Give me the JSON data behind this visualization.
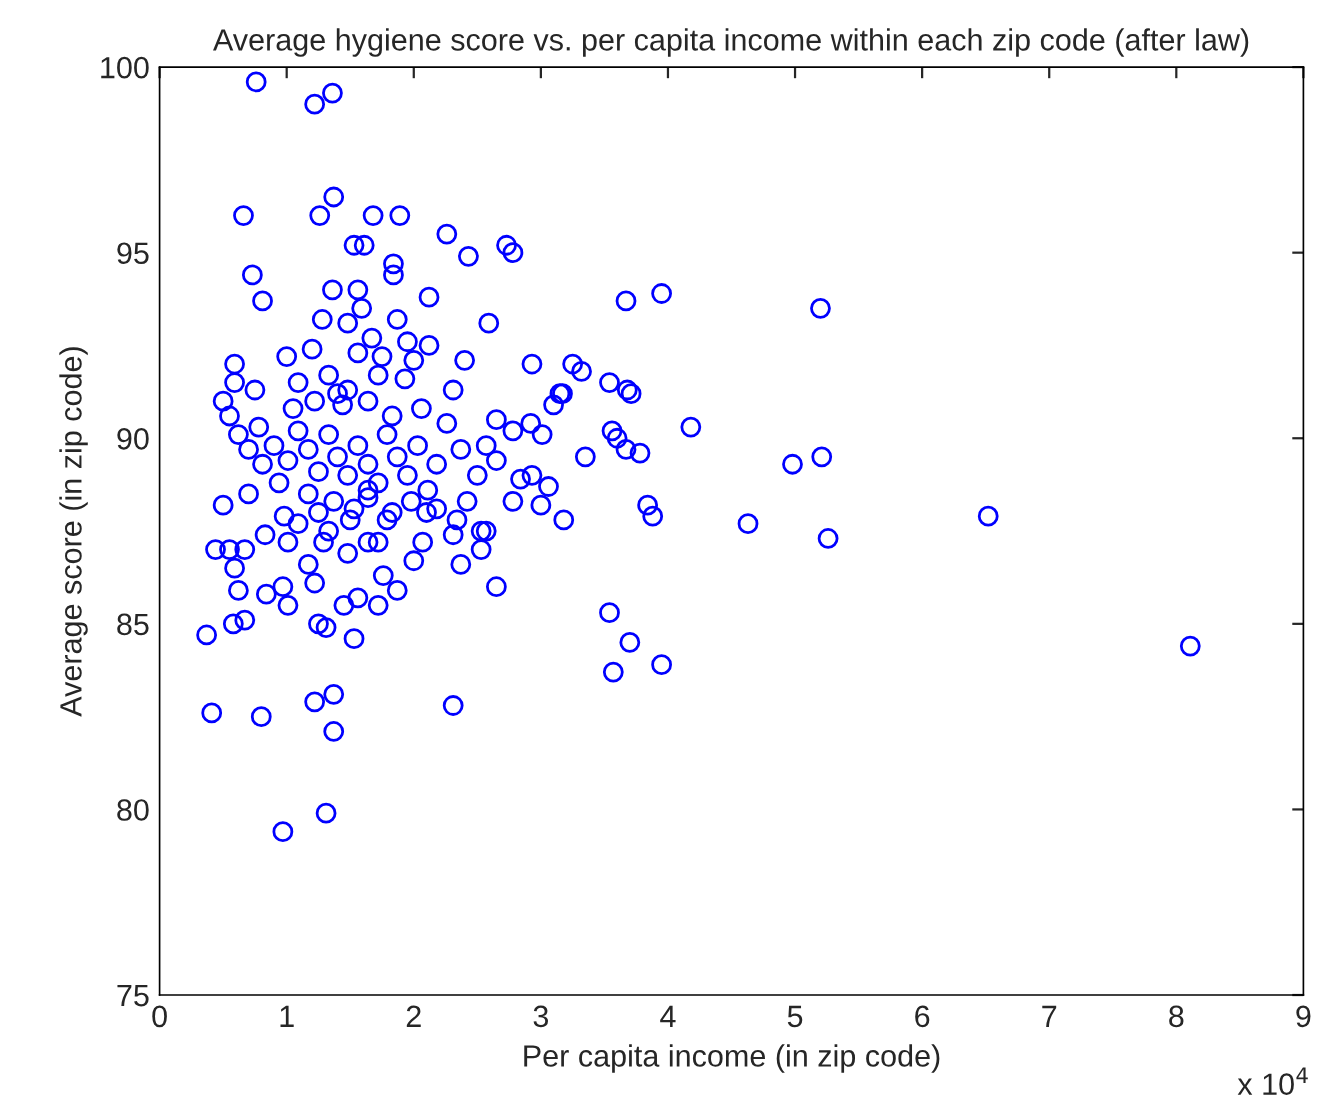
{
  "chart_data": {
    "type": "scatter",
    "title": "Average hygiene score vs. per capita income within each zip code (after law)",
    "xlabel": "Per capita income (in zip code)",
    "ylabel": "Average score (in zip code)",
    "annotations": [
      "x 10$^{4}$"
    ],
    "xlim": [
      0,
      9
    ],
    "xticks": [
      0,
      1,
      2,
      3,
      4,
      5,
      6,
      7,
      8,
      9
    ],
    "ylim": [
      75,
      100
    ],
    "yticks": [
      75,
      80,
      85,
      90,
      95,
      100
    ],
    "grid": false,
    "legend": false,
    "marker": "circle",
    "series": [
      {
        "color": "#0000ff",
        "x": [
          0.76,
          1.22,
          1.36,
          1.37,
          1.26,
          0.66,
          1.68,
          1.89,
          1.53,
          1.61,
          2.26,
          2.43,
          2.73,
          2.78,
          0.73,
          1.84,
          1.84,
          0.81,
          1.36,
          1.56,
          2.12,
          1.59,
          1.28,
          1.48,
          2.59,
          3.67,
          3.95,
          5.2,
          1.67,
          1.95,
          2.12,
          0.59,
          1.0,
          1.2,
          1.56,
          1.75,
          2.4,
          2.93,
          3.25,
          3.32,
          0.59,
          0.75,
          1.09,
          1.33,
          1.48,
          1.93,
          2.31,
          3.15,
          3.1,
          3.68,
          1.05,
          1.44,
          1.83,
          2.06,
          2.65,
          2.92,
          4.18,
          0.5,
          0.44,
          0.55,
          0.67,
          0.59,
          0.62,
          0.58,
          0.67,
          0.37,
          0.41,
          0.8,
          1.22,
          1.37,
          1.37,
          2.31,
          1.31,
          0.97,
          0.97,
          1.01,
          0.84,
          1.22,
          1.25,
          1.31,
          1.53,
          1.45,
          1.56,
          1.72,
          1.87,
          1.76,
          1.17,
          1.29,
          1.48,
          1.64,
          1.01,
          0.83,
          2.0,
          2.07,
          2.34,
          2.57,
          2.65,
          2.53,
          2.37,
          2.1,
          1.83,
          1.98,
          1.25,
          0.98,
          0.7,
          1.64,
          2.78,
          3.0,
          3.54,
          3.71,
          3.17,
          3.01,
          3.56,
          3.6,
          3.67,
          3.78,
          3.35,
          4.98,
          5.21,
          2.93,
          3.06,
          3.18,
          3.84,
          3.88,
          4.63,
          5.26,
          6.52,
          3.54,
          3.7,
          3.57,
          3.95,
          8.11,
          0.62,
          0.7,
          0.78,
          0.9,
          1.01,
          1.09,
          1.17,
          1.25,
          1.33,
          1.4,
          1.48,
          1.56,
          1.64,
          1.72,
          1.79,
          1.87,
          1.95,
          2.03,
          2.11,
          2.18,
          2.26,
          2.37,
          2.5,
          2.57,
          2.65,
          2.78,
          2.84,
          1.17,
          1.37,
          1.53,
          1.64,
          1.79,
          0.94,
          0.81,
          0.55,
          0.5,
          1.4,
          1.64,
          1.72,
          1.22,
          2.0,
          1.87,
          1.5,
          1.33,
          1.09,
          1.72,
          2.18,
          2.42,
          2.53,
          2.31
        ],
        "values": [
          99.6,
          99.0,
          99.3,
          96.5,
          96.0,
          96.0,
          96.0,
          96.0,
          95.2,
          95.2,
          95.5,
          94.9,
          95.2,
          95.0,
          94.4,
          94.7,
          94.4,
          93.7,
          94.0,
          94.0,
          93.8,
          93.5,
          93.2,
          93.1,
          93.1,
          93.7,
          93.9,
          93.5,
          92.7,
          92.6,
          92.5,
          92.0,
          92.2,
          92.4,
          92.3,
          92.2,
          92.1,
          92.0,
          92.0,
          91.8,
          91.5,
          91.3,
          91.5,
          91.7,
          91.3,
          91.6,
          91.3,
          91.2,
          90.9,
          91.3,
          90.8,
          90.9,
          90.6,
          90.8,
          90.5,
          90.4,
          90.3,
          88.2,
          87.0,
          87.0,
          87.0,
          86.5,
          85.9,
          85.0,
          85.1,
          84.7,
          82.6,
          82.5,
          82.9,
          83.1,
          82.1,
          82.8,
          79.9,
          79.4,
          86.0,
          85.5,
          85.8,
          86.1,
          85.0,
          84.9,
          84.6,
          85.5,
          85.7,
          85.5,
          85.9,
          86.3,
          86.6,
          87.2,
          86.9,
          87.2,
          87.2,
          87.4,
          86.7,
          87.2,
          87.8,
          87.5,
          86.0,
          87.0,
          86.6,
          88.0,
          88.0,
          88.3,
          88.0,
          87.9,
          88.5,
          88.6,
          88.3,
          88.2,
          91.5,
          91.2,
          91.2,
          90.1,
          90.2,
          90.0,
          89.7,
          89.6,
          89.5,
          89.3,
          89.5,
          89.0,
          88.7,
          87.8,
          88.2,
          87.9,
          87.7,
          87.3,
          87.9,
          85.3,
          84.5,
          83.7,
          83.9,
          84.4,
          90.1,
          89.7,
          90.3,
          89.8,
          89.4,
          90.2,
          89.7,
          89.1,
          90.1,
          89.5,
          89.0,
          89.8,
          89.3,
          88.8,
          90.1,
          89.5,
          89.0,
          89.8,
          88.6,
          89.3,
          90.4,
          89.7,
          89.0,
          89.8,
          89.4,
          90.2,
          88.9,
          88.5,
          88.3,
          88.1,
          88.4,
          87.8,
          88.8,
          89.3,
          90.6,
          91.0,
          91.2,
          91.0,
          91.7,
          91.0,
          92.1,
          93.2,
          87.8,
          87.5,
          87.7,
          87.2,
          88.1,
          88.3,
          87.5,
          87.4
        ]
      }
    ]
  }
}
